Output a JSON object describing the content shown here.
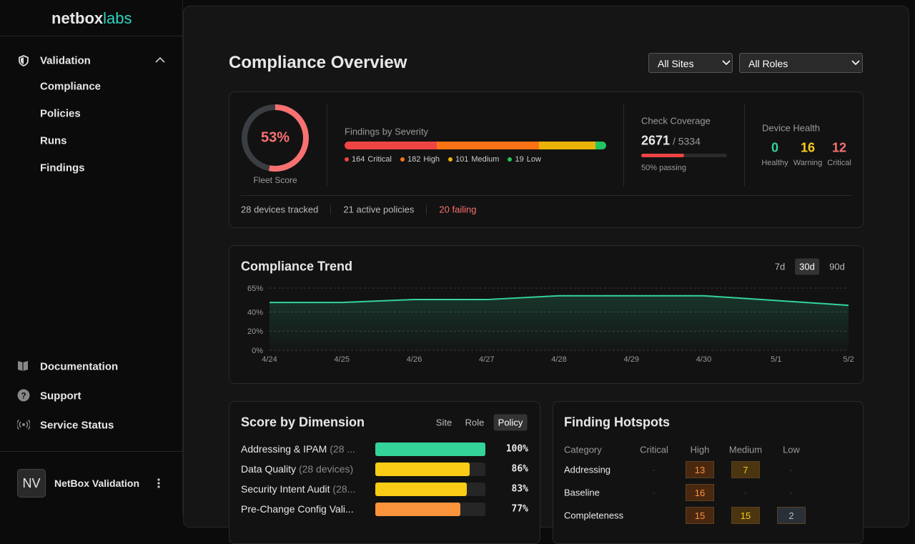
{
  "sidebar": {
    "brand": "netbox",
    "brand_suffix": "labs",
    "section": "Validation",
    "items": [
      "Compliance",
      "Policies",
      "Runs",
      "Findings"
    ],
    "links": [
      "Documentation",
      "Support",
      "Service Status"
    ],
    "user": {
      "initials": "NV",
      "name": "NetBox Validation"
    }
  },
  "header": {
    "title": "Compliance Overview",
    "filters": [
      "All Sites",
      "All Roles"
    ]
  },
  "summary": {
    "fleet_score": {
      "value": 53,
      "label": "53%",
      "caption": "Fleet Score"
    },
    "severity": {
      "title": "Findings by Severity",
      "levels": [
        {
          "name": "Critical",
          "count": 164,
          "color": "#ef4444"
        },
        {
          "name": "High",
          "count": 182,
          "color": "#f97316"
        },
        {
          "name": "Medium",
          "count": 101,
          "color": "#eab308"
        },
        {
          "name": "Low",
          "count": 19,
          "color": "#22c55e"
        }
      ]
    },
    "coverage": {
      "title": "Check Coverage",
      "passing": 2671,
      "total": {
        "value": 5334,
        "label": "/ 5334"
      },
      "percent": {
        "value": 50,
        "label": "50% passing"
      }
    },
    "health": {
      "title": "Device Health",
      "states": [
        {
          "name": "Healthy",
          "count": 0,
          "color": "#34d399"
        },
        {
          "name": "Warning",
          "count": 16,
          "color": "#facc15"
        },
        {
          "name": "Critical",
          "count": 12,
          "color": "#f87171"
        }
      ]
    },
    "stats": [
      "28 devices tracked",
      "21 active policies",
      "20 failing"
    ]
  },
  "trend_controls": {
    "ranges": [
      "7d",
      "30d",
      "90d"
    ],
    "active": 1
  },
  "chart_data": {
    "type": "area",
    "title": "Compliance Trend",
    "categories": [
      "4/24",
      "4/25",
      "4/26",
      "4/27",
      "4/28",
      "4/29",
      "4/30",
      "5/1",
      "5/2"
    ],
    "values": [
      50,
      50,
      53,
      53,
      57,
      57,
      57,
      52,
      47
    ],
    "color": "#34d399",
    "ylim": [
      0,
      65
    ],
    "yticks": [
      {
        "value": 0,
        "label": "0%"
      },
      {
        "value": 20,
        "label": "20%"
      },
      {
        "value": 40,
        "label": "40%"
      },
      {
        "value": 65,
        "label": "65%"
      }
    ]
  },
  "dimension": {
    "title": "Score by Dimension",
    "tabs": [
      "Site",
      "Role",
      "Policy"
    ],
    "active_tab": 2,
    "rows": [
      {
        "name": "Addressing & IPAM",
        "detail": "(28 ...",
        "value": 100,
        "label": "100%",
        "color": "#34d399"
      },
      {
        "name": "Data Quality",
        "detail": "(28 devices)",
        "value": 86,
        "label": "86%",
        "color": "#facc15"
      },
      {
        "name": "Security Intent Audit",
        "detail": "(28...",
        "value": 83,
        "label": "83%",
        "color": "#facc15"
      },
      {
        "name": "Pre-Change Config Vali...",
        "value": 77,
        "label": "77%",
        "color": "#fb923c"
      }
    ]
  },
  "hotspots": {
    "title": "Finding Hotspots",
    "columns": [
      "Category",
      "Critical",
      "High",
      "Medium",
      "Low"
    ],
    "rows": [
      [
        "Addressing",
        "-",
        13,
        7,
        "-"
      ],
      [
        "Baseline",
        "-",
        16,
        "-",
        "-"
      ],
      [
        "Completeness",
        null,
        15,
        15,
        2
      ]
    ]
  }
}
